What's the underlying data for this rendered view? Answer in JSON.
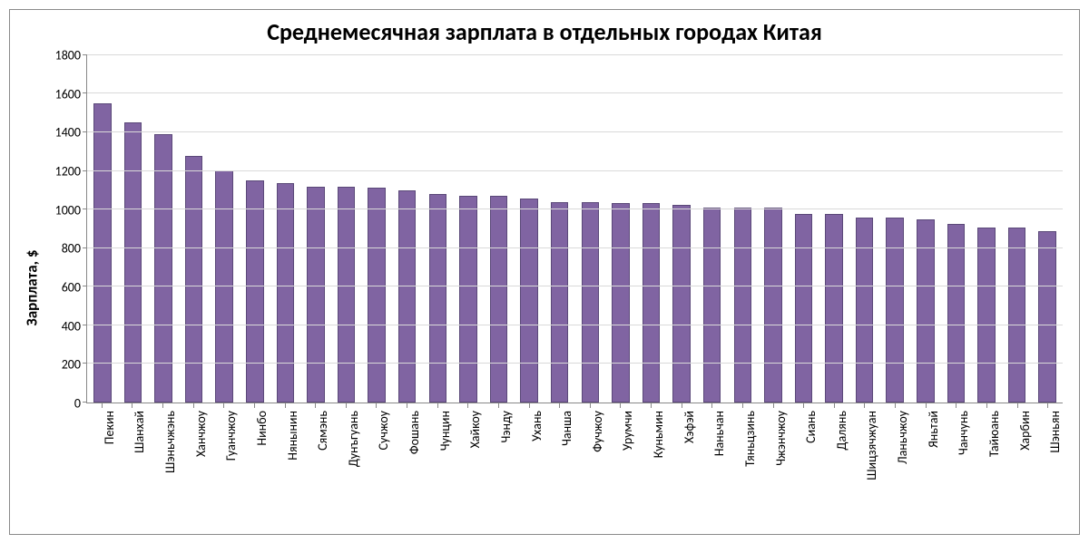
{
  "chart": {
    "type": "bar",
    "title": "Среднемесячная зарплата в отдельных городах Китая",
    "title_fontsize": 26,
    "title_color": "#000000",
    "y_axis_label": "Зарплата, $",
    "y_axis_label_fontsize": 17,
    "ylim": [
      0,
      1800
    ],
    "ytick_step": 200,
    "yticks": [
      0,
      200,
      400,
      600,
      800,
      1000,
      1200,
      1400,
      1600,
      1800
    ],
    "tick_fontsize": 14,
    "xlabel_fontsize": 14,
    "background_color": "#ffffff",
    "plot_border_color": "#888888",
    "grid_color": "#d9d9d9",
    "grid": true,
    "bar_color": "#8064a2",
    "bar_border_color": "#5a4878",
    "bar_width_pct": 58,
    "categories": [
      "Пекин",
      "Шанхай",
      "Шэньчжэнь",
      "Ханчжоу",
      "Гуанчжоу",
      "Нинбо",
      "Нянынин",
      "Сямэнь",
      "Дунъгуань",
      "Сучжоу",
      "Фошань",
      "Чунцин",
      "Хайкоу",
      "Чэнду",
      "Ухань",
      "Чанша",
      "Фучжоу",
      "Урумчи",
      "Куньмин",
      "Хэфэй",
      "Наньчан",
      "Тяньцзинь",
      "Чжэнчжоу",
      "Сиань",
      "Далянь",
      "Шицзячжуан",
      "Ланьчжоу",
      "Яньтай",
      "Чанчунь",
      "Тайюань",
      "Харбин",
      "Шэньян"
    ],
    "values": [
      1550,
      1450,
      1390,
      1280,
      1205,
      1150,
      1135,
      1120,
      1120,
      1115,
      1100,
      1080,
      1070,
      1070,
      1055,
      1040,
      1040,
      1035,
      1035,
      1025,
      1010,
      1010,
      1010,
      975,
      975,
      960,
      960,
      950,
      925,
      905,
      905,
      890
    ]
  }
}
